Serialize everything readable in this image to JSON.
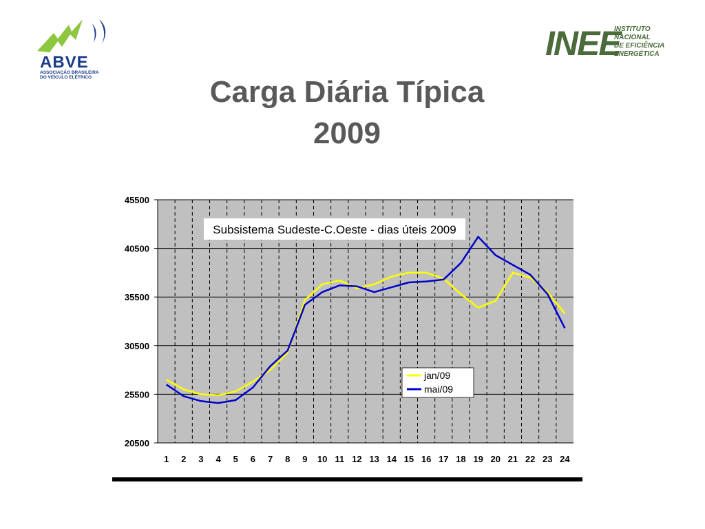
{
  "logos": {
    "left": {
      "text": "ABVE",
      "subtext_line1": "ASSOCIAÇÃO BRASILEIRA",
      "subtext_line2": "DO VEÍCULO ELÉTRICO"
    },
    "right": {
      "text": "INEE",
      "subtext_lines": [
        "INSTITUTO",
        "NACIONAL",
        "DE EFICIÊNCIA",
        "ENERGÉTICA"
      ]
    }
  },
  "slide": {
    "title_line1": "Carga Diária Típica",
    "title_line2": "2009"
  },
  "colors": {
    "title": "#595959",
    "plot_bg": "#c0c0c0",
    "jan": "#ffff00",
    "mai": "#0000cc",
    "abve_green": "#8dc63f",
    "abve_blue": "#1a3a8a",
    "inee_green": "#4a6b3a"
  },
  "chart_data": {
    "type": "line",
    "title": "Subsistema Sudeste-C.Oeste - dias úteis 2009",
    "x": [
      1,
      2,
      3,
      4,
      5,
      6,
      7,
      8,
      9,
      10,
      11,
      12,
      13,
      14,
      15,
      16,
      17,
      18,
      19,
      20,
      21,
      22,
      23,
      24
    ],
    "xticks": [
      "1",
      "2",
      "3",
      "4",
      "5",
      "6",
      "7",
      "8",
      "9",
      "10",
      "11",
      "12",
      "13",
      "14",
      "15",
      "16",
      "17",
      "18",
      "19",
      "20",
      "21",
      "22",
      "23",
      "24"
    ],
    "ylim": [
      20500,
      45500
    ],
    "yticks": [
      "45500",
      "40500",
      "35500",
      "30500",
      "25500",
      "20500"
    ],
    "ytick_values": [
      45500,
      40500,
      35500,
      30500,
      25500,
      20500
    ],
    "grid": "horizontal solid, vertical dashed",
    "legend_position": "center-right",
    "series": [
      {
        "name": "jan/09",
        "values": [
          27000,
          26000,
          25500,
          25400,
          25800,
          26800,
          28000,
          29800,
          35200,
          36800,
          37200,
          36400,
          36800,
          37600,
          38000,
          38000,
          37400,
          35800,
          34400,
          35100,
          38000,
          37500,
          36000,
          33800
        ]
      },
      {
        "name": "mai/09",
        "values": [
          26500,
          25300,
          24800,
          24600,
          24900,
          26200,
          28400,
          30000,
          34700,
          36000,
          36700,
          36600,
          36000,
          36500,
          37000,
          37100,
          37300,
          39000,
          41700,
          39800,
          38800,
          37800,
          35800,
          32300
        ]
      }
    ]
  }
}
